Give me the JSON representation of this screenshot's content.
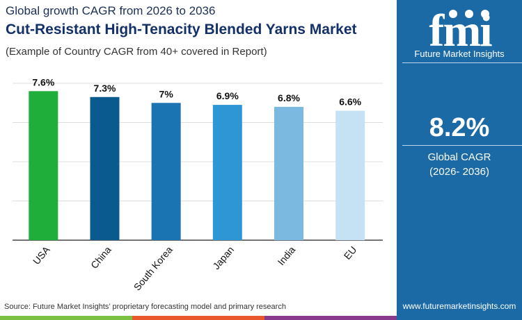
{
  "header": {
    "subtitle": "Global growth CAGR from 2026 to 2036",
    "title": "Cut-Resistant High-Tenacity Blended Yarns Market",
    "note": "(Example of Country CAGR from 40+ covered in Report)"
  },
  "chart_data": {
    "type": "bar",
    "categories": [
      "USA",
      "China",
      "South Korea",
      "Japan",
      "India",
      "EU"
    ],
    "values": [
      7.6,
      7.3,
      7,
      6.9,
      6.8,
      6.6
    ],
    "data_labels": [
      "7.6%",
      "7.3%",
      "7%",
      "6.9%",
      "6.8%",
      "6.6%"
    ],
    "ylim": [
      0,
      8
    ],
    "grid": true,
    "colors": [
      "#1fae3a",
      "#0b5a8f",
      "#1b74b2",
      "#2f96d6",
      "#7cb9e1",
      "#c5e2f4"
    ]
  },
  "source": "Source: Future Market Insights’ proprietary forecasting model and primary research",
  "stripe_colors": [
    "#7ac143",
    "#e8582a",
    "#8a3a8c"
  ],
  "panel": {
    "brand": "Future Market Insights",
    "logo_text": "fmi",
    "cagr_value": "8.2%",
    "cagr_label": "Global CAGR",
    "cagr_period": "(2026- 2036)",
    "url": "www.futuremarketinsights.com",
    "bg": "#1b6aa6"
  }
}
